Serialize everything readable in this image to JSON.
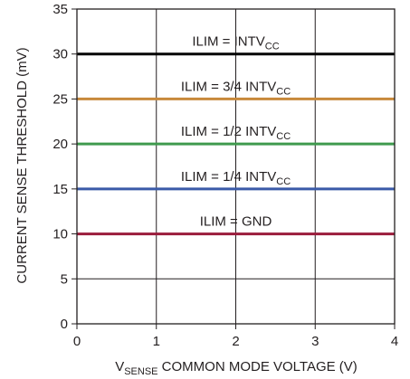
{
  "chart_data": {
    "type": "line",
    "xlabel": {
      "main": "V",
      "sub": "SENSE",
      "rest": " COMMON MODE VOLTAGE (V)"
    },
    "ylabel": "CURRENT SENSE THRESHOLD (mV)",
    "xlim": [
      0,
      4
    ],
    "ylim": [
      0,
      35
    ],
    "x_ticks": [
      0,
      1,
      2,
      3,
      4
    ],
    "y_ticks": [
      0,
      5,
      10,
      15,
      20,
      25,
      30,
      35
    ],
    "grid": true,
    "series": [
      {
        "label": {
          "main": "ILIM = INTV",
          "sub": "CC"
        },
        "color": "#000000",
        "x": [
          0,
          4
        ],
        "y": [
          30,
          30
        ]
      },
      {
        "label": {
          "main": "ILIM = 3/4 INTV",
          "sub": "CC"
        },
        "color": "#c8893b",
        "x": [
          0,
          4
        ],
        "y": [
          25,
          25
        ]
      },
      {
        "label": {
          "main": "ILIM = 1/2 INTV",
          "sub": "CC"
        },
        "color": "#3f9a4e",
        "x": [
          0,
          4
        ],
        "y": [
          20,
          20
        ]
      },
      {
        "label": {
          "main": "ILIM = 1/4 INTV",
          "sub": "CC"
        },
        "color": "#3a5aa8",
        "x": [
          0,
          4
        ],
        "y": [
          15,
          15
        ]
      },
      {
        "label": {
          "main": "ILIM = GND",
          "sub": ""
        },
        "color": "#9a1b3b",
        "x": [
          0,
          4
        ],
        "y": [
          10,
          10
        ]
      }
    ]
  }
}
